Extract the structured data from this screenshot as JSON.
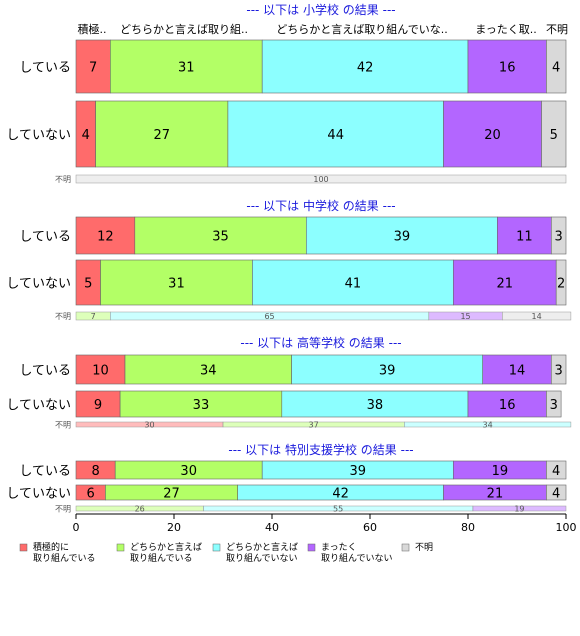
{
  "chart_data": {
    "type": "bar",
    "orientation": "horizontal",
    "stacked": true,
    "xlim": [
      0,
      100
    ],
    "x_ticks": [
      "0",
      "20",
      "40",
      "60",
      "80",
      "100"
    ],
    "category_headers": [
      "積極..",
      "どちらかと言えば取り組..",
      "どちらかと言えば取り組んでいな..",
      "まったく取..",
      "不明"
    ],
    "legend": {
      "placement": "bottom",
      "entries": [
        {
          "label_lines": [
            "積極的に",
            "取り組んでいる"
          ],
          "color": "#ff6b6b"
        },
        {
          "label_lines": [
            "どちらかと言えば",
            "取り組んでいる"
          ],
          "color": "#b3ff66"
        },
        {
          "label_lines": [
            "どちらかと言えば",
            "取り組んでいない"
          ],
          "color": "#8cffff"
        },
        {
          "label_lines": [
            "まったく",
            "取り組んでいない"
          ],
          "color": "#b366ff"
        },
        {
          "label_lines": [
            "不明"
          ],
          "color": "#d9d9d9"
        }
      ]
    },
    "groups": [
      {
        "title": "--- 以下は 小学校 の結果 ---",
        "rows": [
          {
            "label": "している",
            "values": [
              7,
              31,
              42,
              16,
              4
            ]
          },
          {
            "label": "していない",
            "values": [
              4,
              27,
              44,
              20,
              5
            ]
          }
        ],
        "unknown_row": {
          "label": "不明",
          "values": [
            0,
            0,
            0,
            0,
            100
          ],
          "value_labels": [
            "",
            "",
            "",
            "",
            "100"
          ]
        }
      },
      {
        "title": "--- 以下は 中学校 の結果 ---",
        "rows": [
          {
            "label": "している",
            "values": [
              12,
              35,
              39,
              11,
              3
            ]
          },
          {
            "label": "していない",
            "values": [
              5,
              31,
              41,
              21,
              2
            ]
          }
        ],
        "unknown_row": {
          "label": "不明",
          "values": [
            0,
            7,
            65,
            15,
            14
          ],
          "value_labels": [
            "",
            "7",
            "65",
            "15",
            "14"
          ]
        }
      },
      {
        "title": "--- 以下は 高等学校 の結果 ---",
        "rows": [
          {
            "label": "している",
            "values": [
              10,
              34,
              39,
              14,
              3
            ]
          },
          {
            "label": "していない",
            "values": [
              9,
              33,
              38,
              16,
              3
            ]
          }
        ],
        "unknown_row": {
          "label": "不明",
          "values": [
            30,
            37,
            34,
            0,
            0
          ],
          "value_labels": [
            "30",
            "37",
            "34",
            "",
            ""
          ]
        }
      },
      {
        "title": "--- 以下は 特別支援学校 の結果 ---",
        "rows": [
          {
            "label": "している",
            "values": [
              8,
              30,
              39,
              19,
              4
            ]
          },
          {
            "label": "していない",
            "values": [
              6,
              27,
              42,
              21,
              4
            ]
          }
        ],
        "unknown_row": {
          "label": "不明",
          "values": [
            0,
            26,
            55,
            19,
            0
          ],
          "value_labels": [
            "",
            "26",
            "55",
            "19",
            ""
          ]
        }
      }
    ]
  }
}
